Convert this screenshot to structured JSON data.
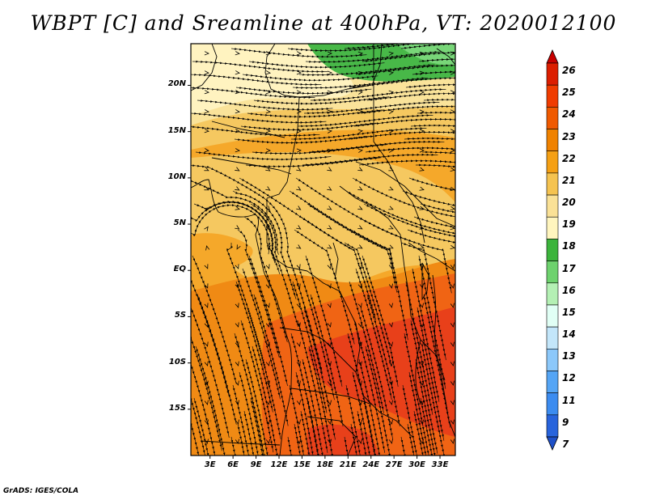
{
  "title": "WBPT [C] and Sreamline at 400hPa, VT: 2020012100",
  "credit": "GrADS: IGES/COLA",
  "map": {
    "lat_labels": [
      "20N",
      "15N",
      "10N",
      "5N",
      "EQ",
      "5S",
      "10S",
      "15S"
    ],
    "lat_values": [
      20,
      15,
      10,
      5,
      0,
      -5,
      -10,
      -15
    ],
    "lon_labels": [
      "3E",
      "6E",
      "9E",
      "12E",
      "15E",
      "18E",
      "21E",
      "24E",
      "27E",
      "30E",
      "33E"
    ],
    "lon_values": [
      3,
      6,
      9,
      12,
      15,
      18,
      21,
      24,
      27,
      30,
      33
    ],
    "lon_range": [
      0.5,
      35
    ],
    "lat_range": [
      -20,
      24.5
    ]
  },
  "colorbar": {
    "levels": [
      "26",
      "25",
      "24",
      "23",
      "22",
      "21",
      "20",
      "19",
      "18",
      "17",
      "16",
      "15",
      "14",
      "13",
      "12",
      "11",
      "9",
      "7"
    ],
    "colors": [
      "#c80000",
      "#dc1e00",
      "#f03c00",
      "#f05a00",
      "#f08200",
      "#f5a014",
      "#f5c350",
      "#fae196",
      "#fff5be",
      "#3cb43c",
      "#6ed26e",
      "#b4f0b4",
      "#e1fff5",
      "#c3e6fa",
      "#8cc8fa",
      "#55a5f5",
      "#3c8cf0",
      "#2864dc",
      "#1e50c8"
    ]
  }
}
